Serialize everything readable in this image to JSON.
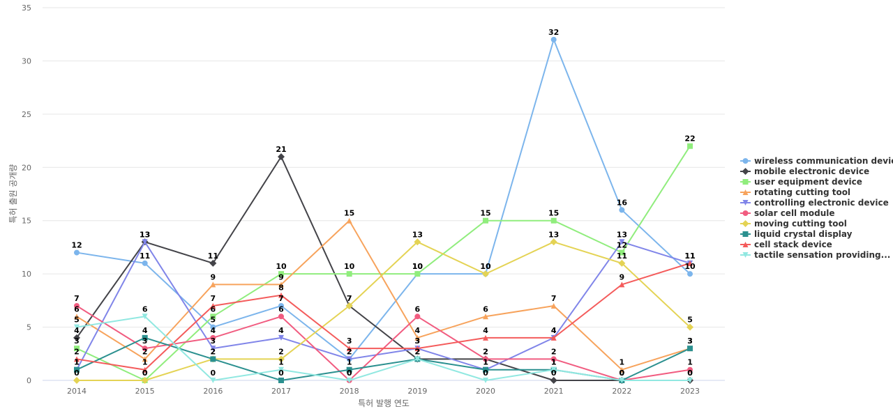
{
  "chart_data": {
    "type": "line",
    "title": "",
    "xlabel": "특허 발행 연도",
    "ylabel": "특허 출원 공개량",
    "x": [
      "2014",
      "2015",
      "2016",
      "2017",
      "2018",
      "2019",
      "2020",
      "2021",
      "2022",
      "2023"
    ],
    "ylim": [
      0,
      35
    ],
    "yticks": [
      0,
      5,
      10,
      15,
      20,
      25,
      30,
      35
    ],
    "grid": true,
    "legend_position": "right",
    "series": [
      {
        "name": "wireless communication device",
        "color": "#7cb5ec",
        "marker": "circle",
        "values": [
          12,
          11,
          5,
          7,
          2,
          10,
          10,
          32,
          16,
          10
        ]
      },
      {
        "name": "mobile electronic device",
        "color": "#434348",
        "marker": "diamond",
        "values": [
          4,
          13,
          11,
          21,
          7,
          2,
          2,
          0,
          0,
          0
        ]
      },
      {
        "name": "user equipment device",
        "color": "#90ed7d",
        "marker": "square",
        "values": [
          3,
          0,
          6,
          10,
          10,
          10,
          15,
          15,
          12,
          22
        ]
      },
      {
        "name": "rotating cutting tool",
        "color": "#f7a35c",
        "marker": "triangle",
        "values": [
          6,
          2,
          9,
          9,
          15,
          4,
          6,
          7,
          1,
          3
        ]
      },
      {
        "name": "controlling electronic device",
        "color": "#8085e9",
        "marker": "triangle-down",
        "values": [
          1,
          13,
          3,
          4,
          2,
          3,
          1,
          4,
          13,
          11
        ]
      },
      {
        "name": "solar cell module",
        "color": "#f15c80",
        "marker": "circle",
        "values": [
          7,
          3,
          4,
          6,
          0,
          6,
          2,
          2,
          0,
          1
        ]
      },
      {
        "name": "moving cutting tool",
        "color": "#e4d354",
        "marker": "diamond",
        "values": [
          0,
          0,
          2,
          2,
          7,
          13,
          10,
          13,
          11,
          5
        ]
      },
      {
        "name": "liquid crystal display",
        "color": "#2b908f",
        "marker": "square",
        "values": [
          1,
          4,
          2,
          0,
          1,
          2,
          1,
          1,
          0,
          3
        ]
      },
      {
        "name": "cell stack device",
        "color": "#f45b5b",
        "marker": "triangle",
        "values": [
          2,
          1,
          7,
          8,
          3,
          3,
          4,
          4,
          9,
          11
        ]
      },
      {
        "name": "tactile sensation providing...",
        "color": "#91e8e1",
        "marker": "triangle-down",
        "values": [
          5,
          6,
          0,
          1,
          0,
          2,
          0,
          1,
          0,
          0
        ]
      }
    ]
  }
}
